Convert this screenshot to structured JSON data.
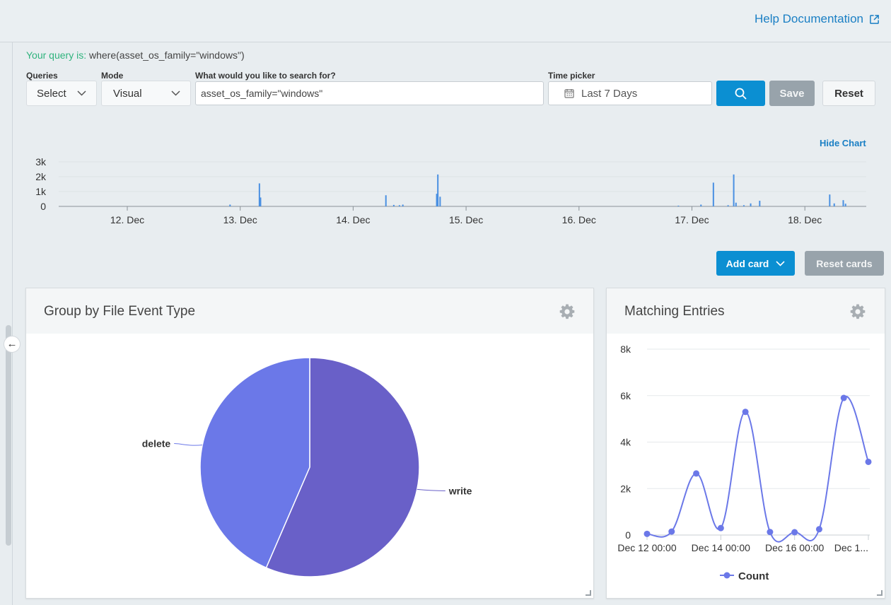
{
  "header": {
    "help_label": "Help Documentation"
  },
  "query": {
    "label": "Your query is:",
    "value": " where(asset_os_family=\"windows\")"
  },
  "controls": {
    "queries_label": "Queries",
    "queries_value": "Select",
    "mode_label": "Mode",
    "mode_value": "Visual",
    "search_label": "What would you like to search for?",
    "search_value": "asset_os_family=\"windows\"",
    "time_label": "Time picker",
    "time_value": "Last 7 Days",
    "save_label": "Save",
    "reset_label": "Reset"
  },
  "histogram": {
    "hide_label": "Hide Chart",
    "y_ticks": [
      "0",
      "1k",
      "2k",
      "3k"
    ],
    "y_max": 3000,
    "x_labels": [
      "12. Dec",
      "13. Dec",
      "14. Dec",
      "15. Dec",
      "16. Dec",
      "17. Dec",
      "18. Dec"
    ],
    "color": "#4a90e2",
    "bars": [
      [
        12.91,
        120
      ],
      [
        13.17,
        1550
      ],
      [
        13.18,
        600
      ],
      [
        14.29,
        750
      ],
      [
        14.36,
        100
      ],
      [
        14.41,
        80
      ],
      [
        14.44,
        120
      ],
      [
        14.74,
        850
      ],
      [
        14.75,
        2150
      ],
      [
        14.77,
        650
      ],
      [
        16.88,
        50
      ],
      [
        17.08,
        120
      ],
      [
        17.19,
        1600
      ],
      [
        17.32,
        80
      ],
      [
        17.37,
        2150
      ],
      [
        17.39,
        250
      ],
      [
        17.46,
        80
      ],
      [
        17.52,
        200
      ],
      [
        17.6,
        380
      ],
      [
        18.22,
        800
      ],
      [
        18.26,
        200
      ],
      [
        18.34,
        420
      ],
      [
        18.36,
        180
      ]
    ]
  },
  "cards": {
    "add_label": "Add card",
    "reset_label": "Reset cards",
    "pie_title": "Group by File Event Type",
    "line_title": "Matching Entries"
  },
  "chart_data": [
    {
      "type": "pie",
      "slices": [
        {
          "label": "write",
          "value": 56.5,
          "color": "#6960c8"
        },
        {
          "label": "delete",
          "value": 43.5,
          "color": "#6b78e8"
        }
      ]
    },
    {
      "type": "line",
      "x": [
        "Dec 12 00:00",
        "Dec 12 12:00",
        "Dec 13 00:00",
        "Dec 13 12:00",
        "Dec 14 00:00",
        "Dec 14 12:00",
        "Dec 15 00:00",
        "Dec 15 12:00",
        "Dec 16 00:00",
        "Dec 16 12:00"
      ],
      "x_tick_labels": [
        "Dec 12 00:00",
        "Dec 14 00:00",
        "Dec 16 00:00",
        "Dec 1..."
      ],
      "series": [
        {
          "name": "Count",
          "values": [
            50,
            150,
            2650,
            300,
            5300,
            130,
            120,
            250,
            5900,
            3150
          ],
          "color": "#6b78e8"
        }
      ],
      "y_ticks": [
        "0",
        "2k",
        "4k",
        "6k",
        "8k"
      ],
      "ylim": [
        0,
        8000
      ]
    }
  ]
}
